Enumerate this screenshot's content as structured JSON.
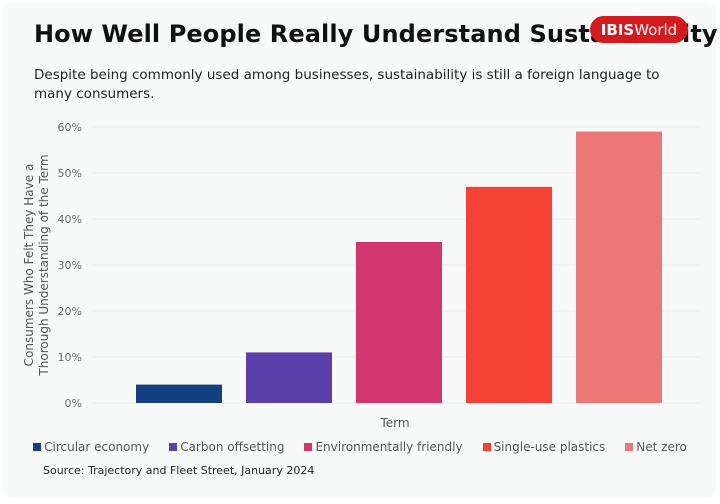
{
  "header": {
    "title": "How Well People Really Understand Sustainability",
    "logo_bold": "IBIS",
    "logo_light": "World",
    "subtitle": "Despite being commonly used among businesses, sustainability is still a foreign language to many consumers."
  },
  "colors": {
    "brand": "#d21b1f"
  },
  "source": "Source: Trajectory and Fleet Street, January 2024",
  "chart_data": {
    "type": "bar",
    "title": "How Well People Really Understand Sustainability",
    "xlabel": "Term",
    "ylabel_lines": [
      "Consumers Who Felt They Have a",
      "Thorough Understanding of the Term"
    ],
    "ylim": [
      0,
      60
    ],
    "yticks": [
      0,
      10,
      20,
      30,
      40,
      50,
      60
    ],
    "ytick_labels": [
      "0%",
      "10%",
      "20%",
      "30%",
      "40%",
      "50%",
      "60%"
    ],
    "grid": true,
    "legend_position": "bottom",
    "categories": [
      "Circular economy",
      "Carbon offsetting",
      "Environmentally friendly",
      "Single-use plastics",
      "Net zero"
    ],
    "values": [
      4,
      11,
      35,
      47,
      59
    ],
    "colors": [
      "#123f80",
      "#5a41aa",
      "#d2366e",
      "#f44336",
      "#ed7776"
    ]
  }
}
